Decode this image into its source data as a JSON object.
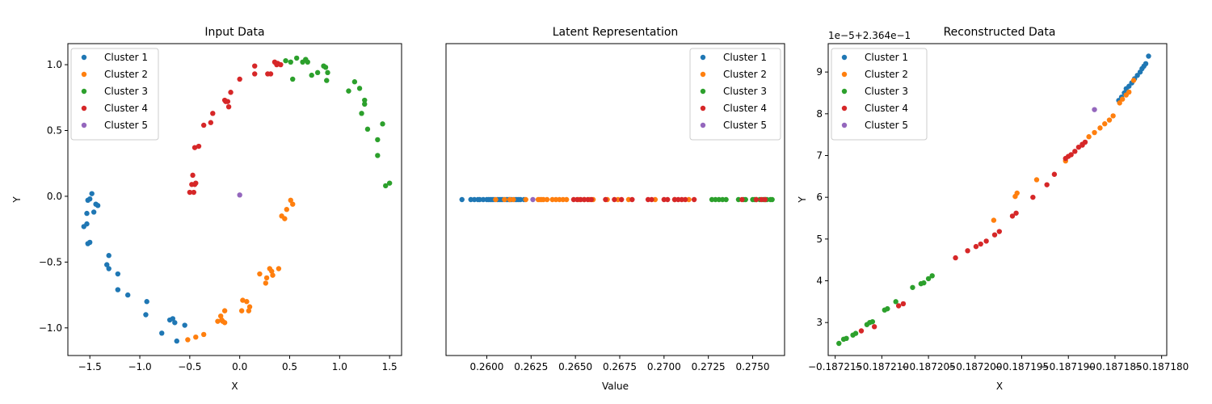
{
  "chart_data": [
    {
      "type": "scatter",
      "title": "Input Data",
      "xlabel": "X",
      "ylabel": "Y",
      "xlim": [
        -1.72,
        1.62
      ],
      "ylim": [
        -1.21,
        1.16
      ],
      "xticks": [
        -1.5,
        -1.0,
        -0.5,
        0.0,
        0.5,
        1.0,
        1.5
      ],
      "xtick_labels": [
        "−1.5",
        "−1.0",
        "−0.5",
        "0.0",
        "0.5",
        "1.0",
        "1.5"
      ],
      "yticks": [
        -1.0,
        -0.5,
        0.0,
        0.5,
        1.0
      ],
      "ytick_labels": [
        "−1.0",
        "−0.5",
        "0.0",
        "0.5",
        "1.0"
      ],
      "legend_position": "upper-left",
      "series": [
        {
          "name": "Cluster 1",
          "color": "#1f77b4",
          "points": [
            [
              -1.56,
              -0.23
            ],
            [
              -1.53,
              -0.21
            ],
            [
              -1.53,
              -0.13
            ],
            [
              -1.52,
              -0.03
            ],
            [
              -1.5,
              -0.02
            ],
            [
              -1.48,
              0.02
            ],
            [
              -1.46,
              -0.12
            ],
            [
              -1.44,
              -0.06
            ],
            [
              -1.42,
              -0.07
            ],
            [
              -1.52,
              -0.36
            ],
            [
              -1.5,
              -0.35
            ],
            [
              -1.33,
              -0.52
            ],
            [
              -1.31,
              -0.45
            ],
            [
              -1.31,
              -0.55
            ],
            [
              -1.22,
              -0.59
            ],
            [
              -1.22,
              -0.71
            ],
            [
              -1.12,
              -0.75
            ],
            [
              -0.93,
              -0.8
            ],
            [
              -0.94,
              -0.9
            ],
            [
              -0.78,
              -1.04
            ],
            [
              -0.7,
              -0.94
            ],
            [
              -0.67,
              -0.93
            ],
            [
              -0.65,
              -0.96
            ],
            [
              -0.63,
              -1.1
            ],
            [
              -0.55,
              -0.98
            ]
          ]
        },
        {
          "name": "Cluster 2",
          "color": "#ff7f0e",
          "points": [
            [
              -0.52,
              -1.09
            ],
            [
              -0.44,
              -1.07
            ],
            [
              -0.36,
              -1.05
            ],
            [
              -0.22,
              -0.95
            ],
            [
              -0.19,
              -0.91
            ],
            [
              -0.18,
              -0.94
            ],
            [
              -0.17,
              -0.95
            ],
            [
              -0.15,
              -0.96
            ],
            [
              -0.15,
              -0.87
            ],
            [
              0.02,
              -0.87
            ],
            [
              0.03,
              -0.79
            ],
            [
              0.07,
              -0.8
            ],
            [
              0.09,
              -0.87
            ],
            [
              0.1,
              -0.84
            ],
            [
              0.2,
              -0.59
            ],
            [
              0.26,
              -0.66
            ],
            [
              0.27,
              -0.62
            ],
            [
              0.3,
              -0.55
            ],
            [
              0.32,
              -0.57
            ],
            [
              0.33,
              -0.6
            ],
            [
              0.39,
              -0.55
            ],
            [
              0.42,
              -0.15
            ],
            [
              0.45,
              -0.17
            ],
            [
              0.47,
              -0.1
            ],
            [
              0.51,
              -0.03
            ],
            [
              0.53,
              -0.06
            ]
          ]
        },
        {
          "name": "Cluster 3",
          "color": "#2ca02c",
          "points": [
            [
              0.46,
              1.03
            ],
            [
              0.51,
              1.02
            ],
            [
              0.53,
              0.89
            ],
            [
              0.57,
              1.05
            ],
            [
              0.63,
              1.02
            ],
            [
              0.66,
              1.04
            ],
            [
              0.68,
              1.02
            ],
            [
              0.72,
              0.92
            ],
            [
              0.78,
              0.94
            ],
            [
              0.84,
              0.99
            ],
            [
              0.86,
              0.98
            ],
            [
              0.87,
              0.88
            ],
            [
              0.88,
              0.94
            ],
            [
              1.09,
              0.8
            ],
            [
              1.15,
              0.87
            ],
            [
              1.2,
              0.82
            ],
            [
              1.22,
              0.63
            ],
            [
              1.25,
              0.73
            ],
            [
              1.25,
              0.7
            ],
            [
              1.28,
              0.51
            ],
            [
              1.38,
              0.43
            ],
            [
              1.38,
              0.31
            ],
            [
              1.43,
              0.55
            ],
            [
              1.46,
              0.08
            ],
            [
              1.5,
              0.1
            ]
          ]
        },
        {
          "name": "Cluster 4",
          "color": "#d62728",
          "points": [
            [
              -0.5,
              0.03
            ],
            [
              -0.48,
              0.09
            ],
            [
              -0.46,
              0.03
            ],
            [
              -0.47,
              0.16
            ],
            [
              -0.45,
              0.09
            ],
            [
              -0.44,
              0.1
            ],
            [
              -0.45,
              0.37
            ],
            [
              -0.41,
              0.38
            ],
            [
              -0.36,
              0.54
            ],
            [
              -0.29,
              0.56
            ],
            [
              -0.27,
              0.63
            ],
            [
              -0.15,
              0.73
            ],
            [
              -0.14,
              0.72
            ],
            [
              -0.12,
              0.72
            ],
            [
              -0.11,
              0.68
            ],
            [
              -0.09,
              0.79
            ],
            [
              0.0,
              0.89
            ],
            [
              0.15,
              0.93
            ],
            [
              0.15,
              0.99
            ],
            [
              0.28,
              0.93
            ],
            [
              0.31,
              0.93
            ],
            [
              0.35,
              1.02
            ],
            [
              0.37,
              1.0
            ],
            [
              0.38,
              1.01
            ],
            [
              0.41,
              1.0
            ]
          ]
        },
        {
          "name": "Cluster 5",
          "color": "#9467bd",
          "points": [
            [
              0.0,
              0.01
            ]
          ]
        }
      ]
    },
    {
      "type": "scatter",
      "title": "Latent Representation",
      "xlabel": "Value",
      "ylabel": "",
      "xlim": [
        0.2577,
        0.2768
      ],
      "xticks": [
        0.26,
        0.2625,
        0.265,
        0.2675,
        0.27,
        0.2725,
        0.275
      ],
      "xtick_labels": [
        "0.2600",
        "0.2625",
        "0.2650",
        "0.2675",
        "0.2700",
        "0.2725",
        "0.2750"
      ],
      "legend_position": "upper-right",
      "series": [
        {
          "name": "Cluster 1",
          "color": "#1f77b4",
          "values": [
            0.2586,
            0.2591,
            0.2593,
            0.2595,
            0.2596,
            0.2598,
            0.26,
            0.2601,
            0.2602,
            0.2603,
            0.2604,
            0.2606,
            0.2607,
            0.2608,
            0.2609,
            0.2611,
            0.2612,
            0.2613,
            0.2614,
            0.2616,
            0.2617,
            0.2618,
            0.2619,
            0.2621
          ]
        },
        {
          "name": "Cluster 2",
          "color": "#ff7f0e",
          "values": [
            0.2605,
            0.261,
            0.2613,
            0.2615,
            0.2622,
            0.2629,
            0.263,
            0.2631,
            0.2632,
            0.2634,
            0.2637,
            0.2639,
            0.2641,
            0.2643,
            0.2645,
            0.2652,
            0.2655,
            0.2658,
            0.266,
            0.2668,
            0.2674,
            0.268,
            0.2695,
            0.2706,
            0.2714
          ]
        },
        {
          "name": "Cluster 3",
          "color": "#2ca02c",
          "values": [
            0.2727,
            0.2729,
            0.2731,
            0.2733,
            0.2735,
            0.2742,
            0.2745,
            0.2746,
            0.275,
            0.2751,
            0.2752,
            0.2754,
            0.2756,
            0.2757,
            0.2758,
            0.276,
            0.2761
          ]
        },
        {
          "name": "Cluster 4",
          "color": "#d62728",
          "values": [
            0.2649,
            0.2651,
            0.2653,
            0.2655,
            0.2657,
            0.2659,
            0.2667,
            0.2672,
            0.2676,
            0.2682,
            0.2691,
            0.2693,
            0.27,
            0.2702,
            0.2706,
            0.2708,
            0.271,
            0.2712,
            0.2717,
            0.2744,
            0.2752,
            0.2755,
            0.2757
          ]
        },
        {
          "name": "Cluster 5",
          "color": "#9467bd",
          "values": [
            0.2626
          ]
        }
      ]
    },
    {
      "type": "scatter",
      "title": "Reconstructed Data",
      "xlabel": "X",
      "ylabel": "Y",
      "offset_label": "1e−5+2.364e−1",
      "xlim": [
        -0.18721575,
        -0.18717945
      ],
      "ylim": [
        2.21,
        9.68
      ],
      "xticks": [
        -0.187215,
        -0.18721,
        -0.187205,
        -0.1872,
        -0.187195,
        -0.18719,
        -0.187185,
        -0.18718
      ],
      "xtick_labels": [
        "−0.187215",
        "−0.187210",
        "−0.187205",
        "−0.187200",
        "−0.187195",
        "−0.187190",
        "−0.187185",
        "−0.187180"
      ],
      "yticks": [
        3,
        4,
        5,
        6,
        7,
        8,
        9
      ],
      "ytick_labels": [
        "3",
        "4",
        "5",
        "6",
        "7",
        "8",
        "9"
      ],
      "legend_position": "upper-left",
      "series": [
        {
          "name": "Cluster 1",
          "color": "#1f77b4",
          "points": [
            [
              -0.1871846,
              8.32
            ],
            [
              -0.1871843,
              8.4
            ],
            [
              -0.187184,
              8.5
            ],
            [
              -0.1871838,
              8.6
            ],
            [
              -0.1871835,
              8.66
            ],
            [
              -0.1871832,
              8.74
            ],
            [
              -0.1871829,
              8.84
            ],
            [
              -0.1871826,
              8.92
            ],
            [
              -0.1871823,
              9.0
            ],
            [
              -0.1871821,
              9.08
            ],
            [
              -0.1871819,
              9.14
            ],
            [
              -0.1871817,
              9.2
            ],
            [
              -0.1871814,
              9.38
            ]
          ]
        },
        {
          "name": "Cluster 2",
          "color": "#ff7f0e",
          "points": [
            [
              -0.187198,
              5.45
            ],
            [
              -0.1871957,
              6.02
            ],
            [
              -0.1871955,
              6.1
            ],
            [
              -0.1871934,
              6.42
            ],
            [
              -0.1871903,
              6.87
            ],
            [
              -0.1871878,
              7.45
            ],
            [
              -0.1871872,
              7.55
            ],
            [
              -0.1871866,
              7.66
            ],
            [
              -0.1871861,
              7.76
            ],
            [
              -0.1871856,
              7.85
            ],
            [
              -0.1871852,
              7.95
            ],
            [
              -0.1871845,
              8.26
            ],
            [
              -0.1871842,
              8.35
            ],
            [
              -0.1871838,
              8.45
            ],
            [
              -0.1871835,
              8.52
            ],
            [
              -0.187183,
              8.8
            ]
          ]
        },
        {
          "name": "Cluster 3",
          "color": "#2ca02c",
          "points": [
            [
              -0.1872146,
              2.5
            ],
            [
              -0.1872141,
              2.6
            ],
            [
              -0.1872138,
              2.62
            ],
            [
              -0.1872131,
              2.7
            ],
            [
              -0.1872128,
              2.74
            ],
            [
              -0.1872116,
              2.95
            ],
            [
              -0.1872113,
              3.0
            ],
            [
              -0.187211,
              3.02
            ],
            [
              -0.1872097,
              3.3
            ],
            [
              -0.1872094,
              3.33
            ],
            [
              -0.1872085,
              3.5
            ],
            [
              -0.1872067,
              3.84
            ],
            [
              -0.1872058,
              3.93
            ],
            [
              -0.1872055,
              3.95
            ],
            [
              -0.187205,
              4.05
            ],
            [
              -0.1872046,
              4.12
            ]
          ]
        },
        {
          "name": "Cluster 4",
          "color": "#d62728",
          "points": [
            [
              -0.1872122,
              2.8
            ],
            [
              -0.1872108,
              2.9
            ],
            [
              -0.1872082,
              3.4
            ],
            [
              -0.1872077,
              3.45
            ],
            [
              -0.1872021,
              4.55
            ],
            [
              -0.1872008,
              4.72
            ],
            [
              -0.1871999,
              4.82
            ],
            [
              -0.1871994,
              4.88
            ],
            [
              -0.1871988,
              4.95
            ],
            [
              -0.1871979,
              5.1
            ],
            [
              -0.1871974,
              5.18
            ],
            [
              -0.187196,
              5.55
            ],
            [
              -0.1871956,
              5.62
            ],
            [
              -0.1871938,
              6.0
            ],
            [
              -0.1871923,
              6.3
            ],
            [
              -0.1871915,
              6.55
            ],
            [
              -0.1871903,
              6.93
            ],
            [
              -0.18719,
              6.98
            ],
            [
              -0.1871897,
              7.02
            ],
            [
              -0.1871893,
              7.1
            ],
            [
              -0.1871889,
              7.2
            ],
            [
              -0.1871885,
              7.25
            ],
            [
              -0.1871882,
              7.32
            ],
            [
              -0.1871885,
              7.27
            ]
          ]
        },
        {
          "name": "Cluster 5",
          "color": "#9467bd",
          "points": [
            [
              -0.1871872,
              8.1
            ]
          ]
        }
      ]
    }
  ]
}
